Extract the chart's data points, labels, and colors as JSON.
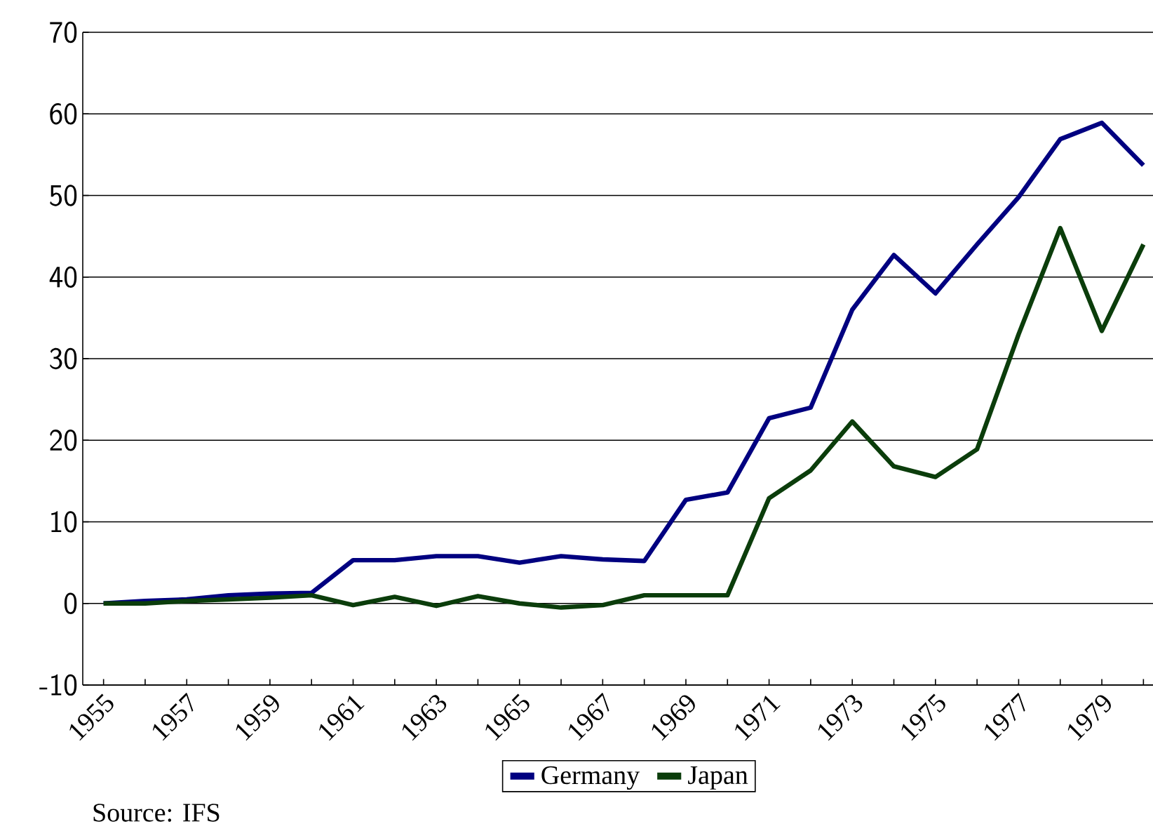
{
  "chart_data": {
    "type": "line",
    "categories": [
      "1955",
      null,
      "1957",
      null,
      "1959",
      null,
      "1961",
      null,
      "1963",
      null,
      "1965",
      null,
      "1967",
      null,
      "1969",
      null,
      "1971",
      null,
      "1973",
      null,
      "1975",
      null,
      "1977",
      null,
      "1979",
      null
    ],
    "series": [
      {
        "name": "Germany",
        "color": "#000080",
        "values": [
          0,
          0.3,
          0.5,
          1,
          1.2,
          1.3,
          5.3,
          5.3,
          5.8,
          5.8,
          5,
          5.8,
          5.4,
          5.2,
          12.7,
          13.6,
          22.7,
          24,
          36,
          42.7,
          38,
          44,
          49.8,
          56.9,
          58.9,
          53.7
        ]
      },
      {
        "name": "Japan",
        "color": "#0b3d0b",
        "values": [
          0,
          0,
          0.3,
          0.5,
          0.7,
          1,
          -0.2,
          0.8,
          -0.3,
          0.9,
          0,
          -0.5,
          -0.2,
          1,
          1,
          1,
          12.9,
          16.3,
          22.3,
          16.8,
          15.5,
          18.9,
          33,
          46,
          33.4,
          44
        ]
      }
    ],
    "ylim": [
      -10,
      70
    ],
    "yticks": [
      -10,
      0,
      10,
      20,
      30,
      40,
      50,
      60,
      70
    ],
    "grid": "y",
    "legend": "bottom",
    "marker": "none",
    "line_style": "solid",
    "annotations": [
      "Source: IFS"
    ]
  }
}
